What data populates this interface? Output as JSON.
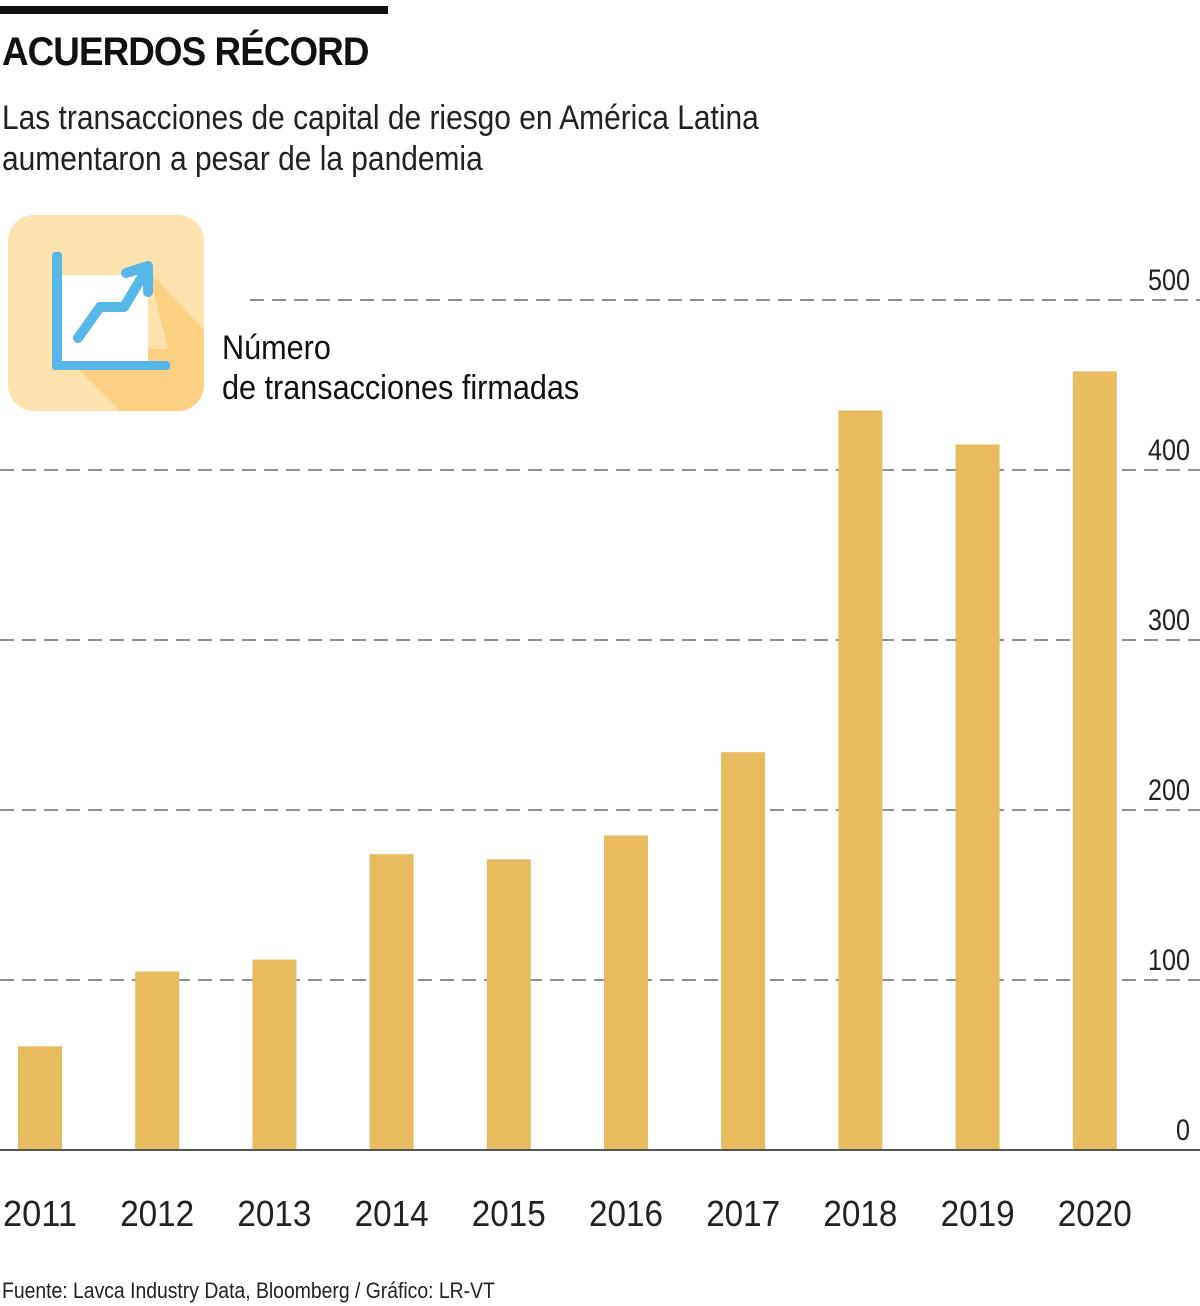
{
  "header": {
    "title": "ACUERDOS RÉCORD",
    "subtitle_line1": "Las transacciones de capital de riesgo en América Latina",
    "subtitle_line2": "aumentaron a pesar de la pandemia"
  },
  "legend": {
    "icon": "trending-chart-icon",
    "line1": "Número",
    "line2": "de transacciones firmadas"
  },
  "colors": {
    "bar": "#E7BB5E",
    "grid": "#6b6b6b",
    "icon_bg": "#FDE2AE",
    "icon_shadow": "#FDD083",
    "icon_blue": "#57B7E8"
  },
  "footer": {
    "source": "Fuente: Lavca Industry Data, Bloomberg / Gráfico: LR-VT"
  },
  "chart_data": {
    "type": "bar",
    "title": "ACUERDOS RÉCORD",
    "subtitle": "Las transacciones de capital de riesgo en América Latina aumentaron a pesar de la pandemia",
    "xlabel": "",
    "ylabel": "Número de transacciones firmadas",
    "categories": [
      "2011",
      "2012",
      "2013",
      "2014",
      "2015",
      "2016",
      "2017",
      "2018",
      "2019",
      "2020"
    ],
    "values": [
      61,
      105,
      112,
      174,
      171,
      185,
      234,
      435,
      415,
      458
    ],
    "ylim": [
      0,
      500
    ],
    "yticks": [
      0,
      100,
      200,
      300,
      400,
      500
    ],
    "ytick_labels": [
      "0",
      "100",
      "200",
      "300",
      "400",
      "500"
    ],
    "y_axis_side": "right",
    "grid": true,
    "grid_style": "dashed",
    "legend": "top-left"
  }
}
